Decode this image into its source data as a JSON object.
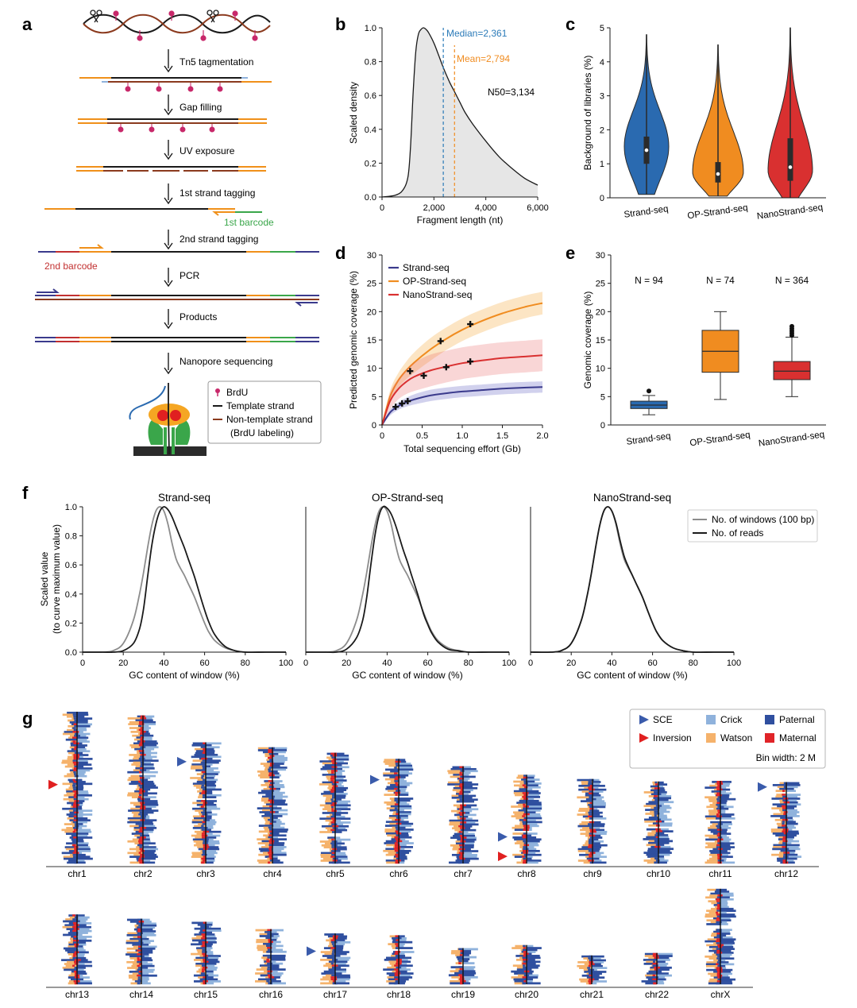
{
  "figure": {
    "panel_labels": [
      "a",
      "b",
      "c",
      "d",
      "e",
      "f",
      "g"
    ]
  },
  "colors": {
    "black": "#1a1a1a",
    "orange": "#f0901a",
    "brown": "#8b3a1e",
    "blue_seq": "#2a6ab0",
    "blue_dark": "#3a3a8c",
    "orange_seq": "#f08c20",
    "red_seq": "#d93030",
    "green": "#3aa64a",
    "red_label": "#c23030",
    "navy": "#3a3a8c",
    "pink_dot": "#c8286a",
    "gray_fill": "#e6e6e6",
    "gray_line": "#8c8c8c",
    "sce_blue": "#3a5bab",
    "inversion_red": "#e02020",
    "crick": "#8fb2dc",
    "watson": "#f5b26b",
    "paternal": "#2f4f9f",
    "maternal": "#e02428"
  },
  "panel_a": {
    "steps": [
      "Tn5 tagmentation",
      "Gap filling",
      "UV exposure",
      "1st strand tagging",
      "2nd strand tagging",
      "PCR",
      "Products",
      "Nanopore sequencing"
    ],
    "first_barcode": "1st barcode",
    "second_barcode": "2nd barcode",
    "legend": {
      "brdu": "BrdU",
      "template": "Template strand",
      "nontemplate": "Non-template strand",
      "nontemplate2": "(BrdU labeling)"
    }
  },
  "chart_data": [
    {
      "panel": "b",
      "type": "area",
      "xlabel": "Fragment length (nt)",
      "ylabel": "Scaled density",
      "xlim": [
        0,
        6000
      ],
      "ylim": [
        0,
        1.0
      ],
      "xticks": [
        "0",
        "2,000",
        "4,000",
        "6,000"
      ],
      "yticks": [
        "0.0",
        "0.2",
        "0.4",
        "0.6",
        "0.8",
        "1.0"
      ],
      "x": [
        0,
        500,
        800,
        1000,
        1100,
        1200,
        1300,
        1400,
        1500,
        1600,
        1700,
        1800,
        2000,
        2200,
        2400,
        2600,
        2800,
        3000,
        3200,
        3500,
        4000,
        4500,
        5000,
        5500,
        6000
      ],
      "y": [
        0.0,
        0.01,
        0.04,
        0.12,
        0.3,
        0.62,
        0.86,
        0.96,
        0.99,
        1.0,
        0.99,
        0.97,
        0.91,
        0.83,
        0.75,
        0.68,
        0.62,
        0.56,
        0.5,
        0.43,
        0.33,
        0.24,
        0.17,
        0.11,
        0.07
      ],
      "annotations": {
        "median_label": "Median=2,361",
        "median_value": 2361,
        "mean_label": "Mean=2,794",
        "mean_value": 2794,
        "n50_label": "N50=3,134"
      }
    },
    {
      "panel": "c",
      "type": "violin",
      "ylabel": "Background of libraries (%)",
      "ylim": [
        0,
        5
      ],
      "yticks": [
        "0",
        "1",
        "2",
        "3",
        "4",
        "5"
      ],
      "categories": [
        "Strand-seq",
        "OP-Strand-seq",
        "NanoStrand-seq"
      ],
      "series": [
        {
          "min": 0.1,
          "q1": 1.0,
          "median": 1.4,
          "q3": 1.8,
          "max": 4.8,
          "mode": 1.5
        },
        {
          "min": 0.05,
          "q1": 0.45,
          "median": 0.7,
          "q3": 1.05,
          "max": 4.5,
          "mode": 0.75
        },
        {
          "min": 0.0,
          "q1": 0.5,
          "median": 0.9,
          "q3": 1.75,
          "max": 5.0,
          "mode": 0.8
        }
      ]
    },
    {
      "panel": "d",
      "type": "line",
      "xlabel": "Total sequencing effort (Gb)",
      "ylabel": "Predicted genomic coverage (%)",
      "xlim": [
        0,
        2.0
      ],
      "ylim": [
        0,
        30
      ],
      "xticks": [
        "0",
        "0.5",
        "1.0",
        "1.5",
        "2.0"
      ],
      "yticks": [
        "0",
        "5",
        "10",
        "15",
        "20",
        "25",
        "30"
      ],
      "series": [
        {
          "name": "Strand-seq",
          "x": [
            0,
            0.1,
            0.2,
            0.3,
            0.4,
            0.6,
            0.8,
            1.0,
            1.2,
            1.5,
            1.8,
            2.0
          ],
          "y": [
            0,
            2.2,
            3.3,
            4.0,
            4.5,
            5.2,
            5.6,
            5.9,
            6.1,
            6.4,
            6.6,
            6.7
          ],
          "band": 1.0,
          "points": [
            [
              0.17,
              3.2
            ],
            [
              0.25,
              3.8
            ],
            [
              0.32,
              4.2
            ]
          ]
        },
        {
          "name": "OP-Strand-seq",
          "x": [
            0,
            0.1,
            0.2,
            0.3,
            0.4,
            0.6,
            0.8,
            1.0,
            1.2,
            1.5,
            1.8,
            2.0
          ],
          "y": [
            0,
            5.0,
            7.8,
            9.6,
            11.0,
            13.3,
            15.2,
            16.8,
            18.1,
            19.7,
            20.9,
            21.5
          ],
          "band": 2.0,
          "points": [
            [
              0.35,
              9.5
            ],
            [
              0.73,
              14.8
            ],
            [
              1.1,
              17.8
            ]
          ]
        },
        {
          "name": "NanoStrand-seq",
          "x": [
            0,
            0.1,
            0.2,
            0.3,
            0.4,
            0.6,
            0.8,
            1.0,
            1.2,
            1.5,
            1.8,
            2.0
          ],
          "y": [
            0,
            4.2,
            6.3,
            7.6,
            8.5,
            9.6,
            10.3,
            10.9,
            11.3,
            11.8,
            12.1,
            12.3
          ],
          "band": 2.8,
          "points": [
            [
              0.52,
              8.7
            ],
            [
              0.8,
              10.2
            ],
            [
              1.1,
              11.2
            ]
          ]
        }
      ]
    },
    {
      "panel": "e",
      "type": "box",
      "ylabel": "Genomic coverage (%)",
      "ylim": [
        0,
        30
      ],
      "yticks": [
        "0",
        "5",
        "10",
        "15",
        "20",
        "25",
        "30"
      ],
      "categories": [
        "Strand-seq",
        "OP-Strand-seq",
        "NanoStrand-seq"
      ],
      "n_labels": [
        "N = 94",
        "N = 74",
        "N = 364"
      ],
      "series": [
        {
          "min": 1.8,
          "q1": 2.9,
          "median": 3.5,
          "q3": 4.2,
          "max": 5.2,
          "outliers": [
            6.0
          ]
        },
        {
          "min": 4.5,
          "q1": 9.3,
          "median": 13.0,
          "q3": 16.7,
          "max": 20.0,
          "outliers": []
        },
        {
          "min": 5.0,
          "q1": 8.0,
          "median": 9.5,
          "q3": 11.2,
          "max": 15.5,
          "outliers": [
            15.8,
            16.2,
            16.6,
            17.0,
            17.4
          ]
        }
      ]
    },
    {
      "panel": "f",
      "type": "line",
      "ylabel": "Scaled value",
      "ylabel2": "(to curve maximum value)",
      "xlabel": "GC content of window (%)",
      "xlim": [
        0,
        100
      ],
      "ylim": [
        0,
        1.0
      ],
      "xticks": [
        "0",
        "20",
        "40",
        "60",
        "80",
        "100"
      ],
      "yticks": [
        "0.0",
        "0.2",
        "0.4",
        "0.6",
        "0.8",
        "1.0"
      ],
      "legend": [
        "No. of windows (100 bp)",
        "No. of reads"
      ],
      "x": [
        0,
        10,
        15,
        20,
        25,
        28,
        30,
        32,
        34,
        36,
        38,
        40,
        42,
        44,
        46,
        48,
        50,
        52,
        55,
        58,
        60,
        62,
        65,
        70,
        75,
        80,
        90,
        100
      ],
      "windows": [
        0,
        0.0,
        0.01,
        0.06,
        0.22,
        0.4,
        0.55,
        0.72,
        0.87,
        0.97,
        1.0,
        0.97,
        0.88,
        0.75,
        0.64,
        0.58,
        0.53,
        0.47,
        0.38,
        0.27,
        0.2,
        0.14,
        0.08,
        0.03,
        0.01,
        0.0,
        0.0,
        0.0
      ],
      "subplots": [
        {
          "title": "Strand-seq",
          "reads": [
            0,
            0.0,
            0.0,
            0.01,
            0.06,
            0.16,
            0.3,
            0.52,
            0.73,
            0.88,
            0.97,
            1.0,
            0.98,
            0.93,
            0.86,
            0.79,
            0.72,
            0.64,
            0.52,
            0.38,
            0.29,
            0.21,
            0.12,
            0.04,
            0.01,
            0.0,
            0.0,
            0.0
          ]
        },
        {
          "title": "OP-Strand-seq",
          "reads": [
            0,
            0.0,
            0.0,
            0.02,
            0.1,
            0.22,
            0.38,
            0.6,
            0.8,
            0.94,
            1.0,
            0.99,
            0.95,
            0.88,
            0.79,
            0.7,
            0.62,
            0.53,
            0.4,
            0.26,
            0.19,
            0.13,
            0.07,
            0.02,
            0.01,
            0.0,
            0.0,
            0.0
          ]
        },
        {
          "title": "NanoStrand-seq",
          "reads": [
            0,
            0.0,
            0.01,
            0.06,
            0.22,
            0.4,
            0.55,
            0.72,
            0.87,
            0.97,
            1.0,
            0.97,
            0.89,
            0.77,
            0.66,
            0.59,
            0.53,
            0.47,
            0.38,
            0.27,
            0.2,
            0.14,
            0.08,
            0.03,
            0.01,
            0.0,
            0.0,
            0.0
          ]
        }
      ]
    }
  ],
  "panel_g": {
    "legend": {
      "sce": "SCE",
      "inversion": "Inversion",
      "crick": "Crick",
      "watson": "Watson",
      "paternal": "Paternal",
      "maternal": "Maternal",
      "bin_width": "Bin width: 2 M"
    },
    "row1": [
      {
        "name": "chr1",
        "len": 248,
        "cen": 0.43,
        "marker": "inversion",
        "markerPos": 0.48
      },
      {
        "name": "chr2",
        "len": 242,
        "cen": 0.39
      },
      {
        "name": "chr3",
        "len": 198,
        "cen": 0.46,
        "marker": "sce",
        "markerPos": 0.16
      },
      {
        "name": "chr4",
        "len": 190,
        "cen": 0.27
      },
      {
        "name": "chr5",
        "len": 181,
        "cen": 0.73
      },
      {
        "name": "chr6",
        "len": 171,
        "cen": 0.35,
        "marker": "sce",
        "markerPos": 0.2
      },
      {
        "name": "chr7",
        "len": 159,
        "cen": 0.38
      },
      {
        "name": "chr8",
        "len": 145,
        "cen": 0.63,
        "marker": "sce",
        "markerPos": 0.7,
        "marker2": "inversion",
        "marker2Pos": 0.92
      },
      {
        "name": "chr9",
        "len": 138,
        "cen": 0.48
      },
      {
        "name": "chr10",
        "len": 134,
        "cen": 0.54
      },
      {
        "name": "chr11",
        "len": 135,
        "cen": 0.46
      },
      {
        "name": "chr12",
        "len": 133,
        "cen": 0.11,
        "marker": "sce",
        "markerPos": 0.06
      }
    ],
    "row2": [
      {
        "name": "chr13",
        "len": 114
      },
      {
        "name": "chr14",
        "len": 107
      },
      {
        "name": "chr15",
        "len": 102
      },
      {
        "name": "chr16",
        "len": 90,
        "cen": 0.42
      },
      {
        "name": "chr17",
        "len": 83,
        "cen": 0.32,
        "marker": "sce",
        "markerPos": 0.35
      },
      {
        "name": "chr18",
        "len": 80,
        "cen": 0.28
      },
      {
        "name": "chr19",
        "len": 59,
        "cen": 0.45
      },
      {
        "name": "chr20",
        "len": 64,
        "cen": 0.38
      },
      {
        "name": "chr21",
        "len": 47
      },
      {
        "name": "chr22",
        "len": 51
      },
      {
        "name": "chrX",
        "len": 156,
        "cen": 0.39
      }
    ]
  }
}
